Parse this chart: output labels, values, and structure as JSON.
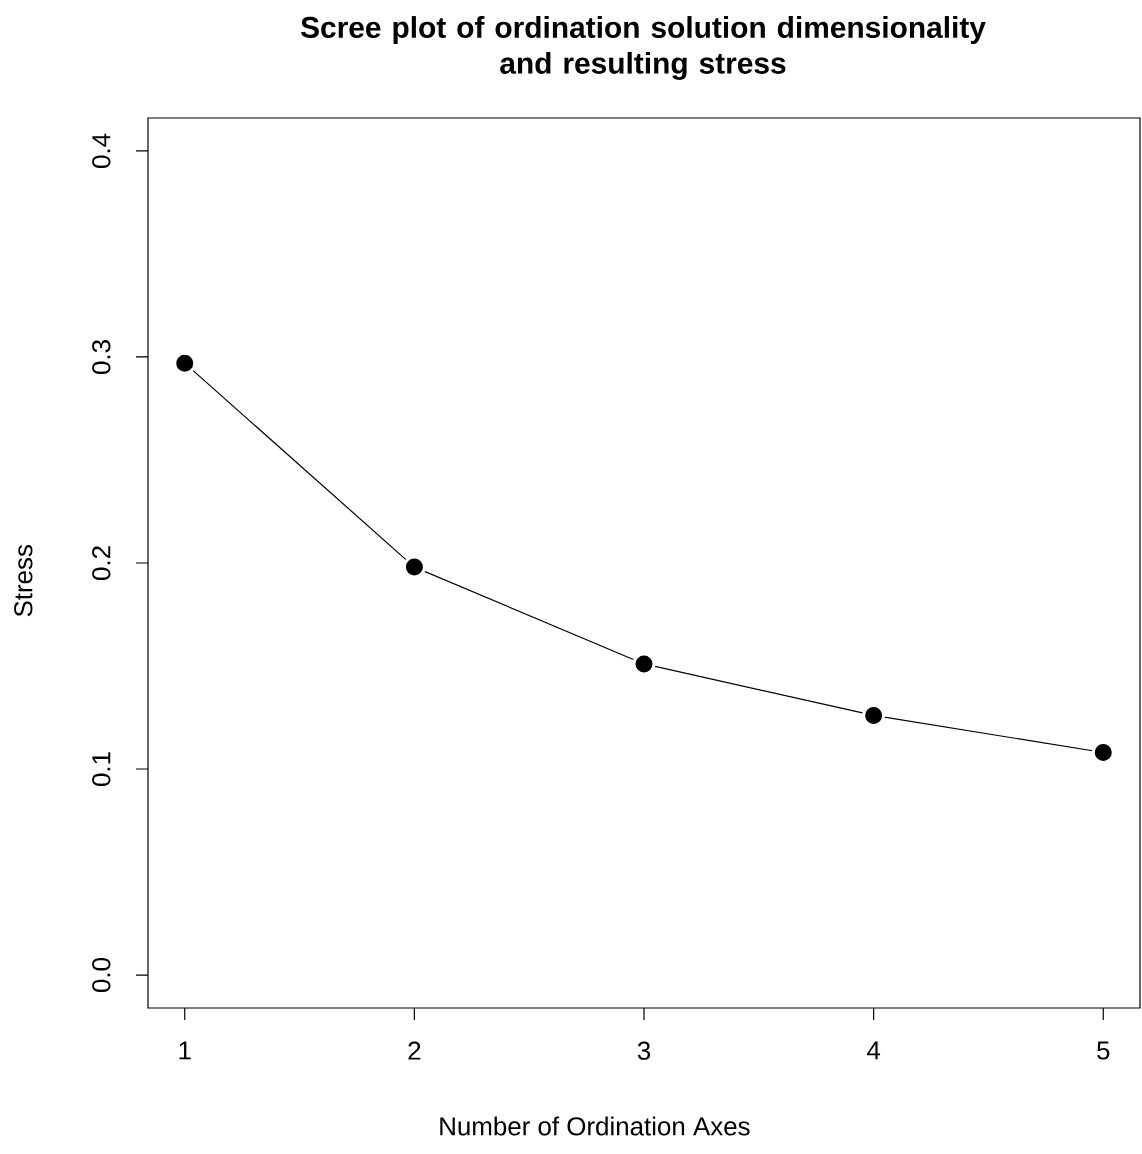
{
  "chart_data": {
    "type": "line",
    "title": "Scree plot of ordination solution dimensionality\nand resulting stress",
    "xlabel": "Number of Ordination Axes",
    "ylabel": "Stress",
    "x": [
      1,
      2,
      3,
      4,
      5
    ],
    "series": [
      {
        "color": "#000000",
        "values": [
          0.297,
          0.198,
          0.151,
          0.126,
          0.108
        ]
      }
    ],
    "xlim": [
      0.84,
      5.16
    ],
    "ylim": [
      -0.016,
      0.416
    ],
    "xticks": [
      1,
      2,
      3,
      4,
      5
    ],
    "yticks": [
      {
        "value": 0,
        "label": "0.0"
      },
      {
        "value": 0.1,
        "label": "0.1"
      },
      {
        "value": 0.2,
        "label": "0.2"
      },
      {
        "value": 0.3,
        "label": "0.3"
      },
      {
        "value": 0.4,
        "label": "0.4"
      }
    ],
    "marker": "circle",
    "line_style": "solid"
  }
}
